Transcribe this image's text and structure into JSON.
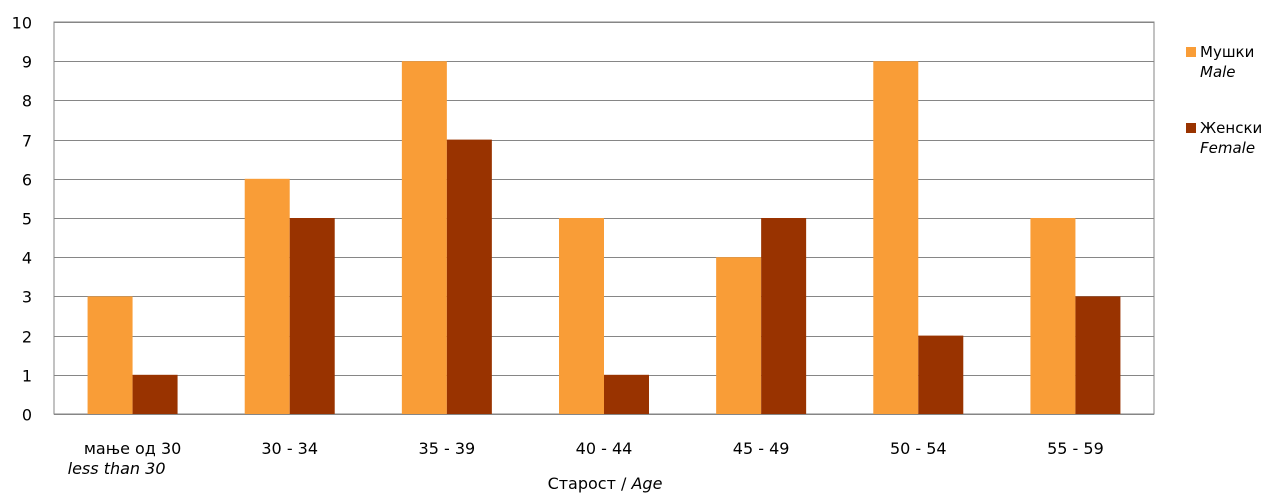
{
  "chart_data": {
    "type": "bar",
    "categories": [
      "мање од 30",
      "30 - 34",
      "35 - 39",
      "40 - 44",
      "45 - 49",
      "50 - 54",
      "55 - 59"
    ],
    "categories_en": [
      "less than 30",
      "",
      "",
      "",
      "",
      "",
      ""
    ],
    "series": [
      {
        "name": "Мушки",
        "name_en": "Male",
        "color": "#f99d37",
        "values": [
          3,
          6,
          9,
          5,
          4,
          9,
          5
        ]
      },
      {
        "name": "Женски",
        "name_en": "Female",
        "color": "#993300",
        "values": [
          1,
          5,
          7,
          1,
          5,
          2,
          3
        ]
      }
    ],
    "xlabel": "Старост / ",
    "xlabel_en": "Age",
    "ylim": [
      0,
      10
    ],
    "yticks": [
      0,
      1,
      2,
      3,
      4,
      5,
      6,
      7,
      8,
      9,
      10
    ],
    "grid": true,
    "legend_position": "right"
  }
}
